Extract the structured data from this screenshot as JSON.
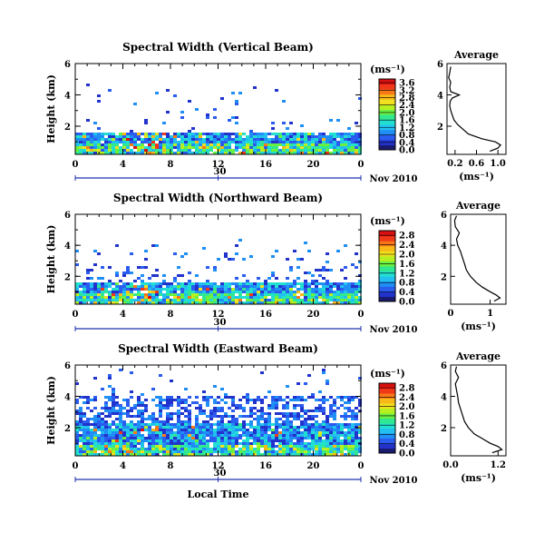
{
  "colors": {
    "ink": "#000000",
    "date_axis": "#2233aa",
    "colormap": [
      "#1a1a6e",
      "#2233cc",
      "#2a5cf0",
      "#1f8ff5",
      "#22c0f0",
      "#22e0d0",
      "#30e890",
      "#6af040",
      "#b6f020",
      "#f0e020",
      "#f8b818",
      "#f87818",
      "#f03818",
      "#d81010"
    ]
  },
  "shared": {
    "xlabel": "Local Time",
    "date_label": "Nov 2010",
    "date_tick_label": "30",
    "ylabel": "Height (km)",
    "colorbar_unit": "(ms⁻¹)",
    "avg_title": "Average",
    "avg_xlabel": "(ms⁻¹)"
  },
  "chart_data": [
    {
      "type": "heatmap",
      "title": "Spectral Width (Vertical Beam)",
      "x_ticks": [
        "0",
        "4",
        "8",
        "12",
        "16",
        "20",
        "0"
      ],
      "xlim": [
        0,
        24
      ],
      "y_ticks": [
        "2",
        "4",
        "6"
      ],
      "ylim": [
        0.2,
        6.0
      ],
      "colorbar_ticks": [
        "0.0",
        "0.4",
        "0.8",
        "1.2",
        "1.6",
        "2.0",
        "2.4",
        "2.8",
        "3.2",
        "3.6"
      ],
      "colorbar_range": [
        0,
        3.8
      ],
      "average": {
        "x_ticks": [
          "0.2",
          "0.6",
          "1.0"
        ],
        "xlim": [
          0.05,
          1.15
        ],
        "heights": [
          0.4,
          0.6,
          0.8,
          1.0,
          1.2,
          1.5,
          1.8,
          2.1,
          2.4,
          2.7,
          3.0,
          3.3,
          3.6,
          3.8,
          4.0,
          4.2,
          4.5,
          4.8,
          5.1,
          5.4,
          5.8
        ],
        "values": [
          0.85,
          1.0,
          1.05,
          0.95,
          0.7,
          0.45,
          0.35,
          0.25,
          0.18,
          0.15,
          0.12,
          0.1,
          0.11,
          0.15,
          0.28,
          0.12,
          0.1,
          0.12,
          0.08,
          0.1,
          0.12
        ]
      }
    },
    {
      "type": "heatmap",
      "title": "Spectral Width (Northward Beam)",
      "x_ticks": [
        "0",
        "4",
        "8",
        "12",
        "16",
        "20",
        "0"
      ],
      "xlim": [
        0,
        24
      ],
      "y_ticks": [
        "2",
        "4",
        "6"
      ],
      "ylim": [
        0.2,
        6.0
      ],
      "colorbar_ticks": [
        "0.0",
        "0.4",
        "0.8",
        "1.2",
        "1.6",
        "2.0",
        "2.4",
        "2.8"
      ],
      "colorbar_range": [
        0,
        3.0
      ],
      "average": {
        "x_ticks": [
          "0",
          "1"
        ],
        "xlim": [
          0,
          1.4
        ],
        "heights": [
          0.4,
          0.6,
          0.8,
          1.0,
          1.3,
          1.6,
          2.0,
          2.4,
          2.8,
          3.2,
          3.6,
          4.0,
          4.4,
          4.8,
          5.2,
          5.6,
          5.9
        ],
        "values": [
          1.1,
          1.25,
          1.15,
          1.0,
          0.8,
          0.65,
          0.5,
          0.4,
          0.35,
          0.3,
          0.25,
          0.18,
          0.15,
          0.22,
          0.12,
          0.1,
          0.15
        ]
      }
    },
    {
      "type": "heatmap",
      "title": "Spectral Width (Eastward Beam)",
      "x_ticks": [
        "0",
        "4",
        "8",
        "12",
        "16",
        "20",
        "0"
      ],
      "xlim": [
        0,
        24
      ],
      "y_ticks": [
        "2",
        "4",
        "6"
      ],
      "ylim": [
        0.2,
        6.0
      ],
      "colorbar_ticks": [
        "0.0",
        "0.4",
        "0.8",
        "1.2",
        "1.6",
        "2.0",
        "2.4",
        "2.8"
      ],
      "colorbar_range": [
        0,
        3.0
      ],
      "average": {
        "x_ticks": [
          "0.0",
          "1.2"
        ],
        "xlim": [
          0,
          1.4
        ],
        "heights": [
          0.4,
          0.6,
          0.8,
          1.0,
          1.3,
          1.6,
          2.0,
          2.4,
          2.8,
          3.2,
          3.6,
          4.0,
          4.4,
          4.8,
          5.2,
          5.6,
          5.9
        ],
        "values": [
          1.05,
          1.3,
          1.2,
          1.0,
          0.8,
          0.6,
          0.45,
          0.35,
          0.3,
          0.25,
          0.2,
          0.18,
          0.15,
          0.12,
          0.2,
          0.12,
          0.15
        ]
      }
    }
  ]
}
